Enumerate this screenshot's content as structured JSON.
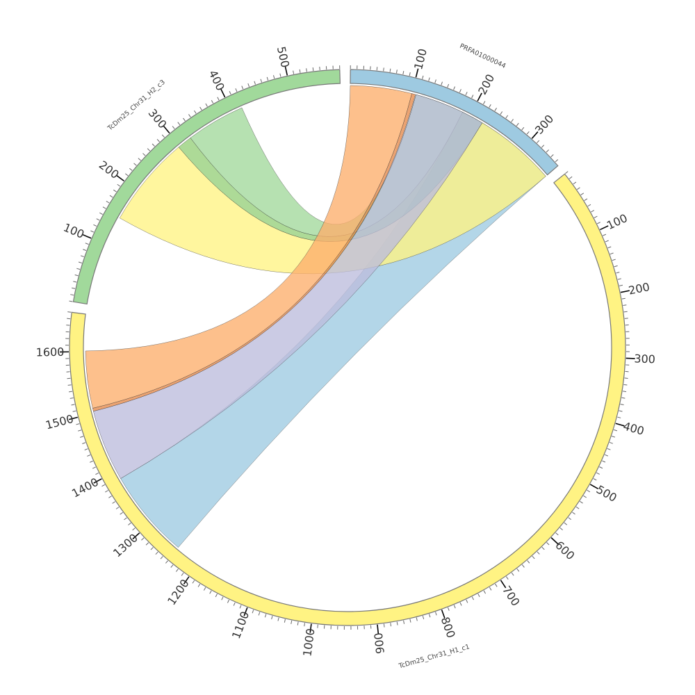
{
  "chart_data": {
    "type": "chord",
    "title": "",
    "tick_step_minor": 10,
    "tick_step_major": 100,
    "chromosomes": [
      {
        "id": "blue",
        "name": "PRFA01000044",
        "length": 357,
        "color": "#9ecae1",
        "major_ticks": [
          "100",
          "200",
          "300"
        ]
      },
      {
        "id": "yellow",
        "name": "TcDm25_Chr31_H1_c1",
        "length": 1660,
        "color": "#fff383",
        "major_ticks": [
          "100",
          "200",
          "300",
          "400",
          "500",
          "600",
          "700",
          "800",
          "900",
          "1000",
          "1100",
          "1200",
          "1300",
          "1400",
          "1500",
          "1600"
        ]
      },
      {
        "id": "green",
        "name": "TcDm25_Chr31_H2_c3",
        "length": 580,
        "color": "#a1d99b",
        "major_ticks": [
          "100",
          "200",
          "300",
          "400",
          "500"
        ]
      }
    ],
    "links": [
      {
        "source": "blue",
        "source_range": [
          187,
          357
        ],
        "target": "yellow",
        "target_range": [
          1241,
          1386
        ],
        "color": "#9ecae1"
      },
      {
        "source": "blue",
        "source_range": [
          223,
          357
        ],
        "target": "green",
        "target_range": [
          148,
          297
        ],
        "color": "#fff383"
      },
      {
        "source": "blue",
        "source_range": [
          187,
          223
        ],
        "target": "green",
        "target_range": [
          297,
          321
        ],
        "color": "#96d07a"
      },
      {
        "source": "blue",
        "source_range": [
          107,
          187
        ],
        "target": "green",
        "target_range": [
          321,
          417
        ],
        "color": "#a1d99b"
      },
      {
        "source": "blue",
        "source_range": [
          107,
          223
        ],
        "target": "yellow",
        "target_range": [
          1386,
          1503
        ],
        "color": "#bcbddc"
      },
      {
        "source": "blue",
        "source_range": [
          100,
          106
        ],
        "target": "yellow",
        "target_range": [
          1503,
          1508
        ],
        "color": "#e6894a"
      },
      {
        "source": "blue",
        "source_range": [
          0,
          100
        ],
        "target": "yellow",
        "target_range": [
          1508,
          1601
        ],
        "color": "#fdae6b"
      }
    ]
  }
}
